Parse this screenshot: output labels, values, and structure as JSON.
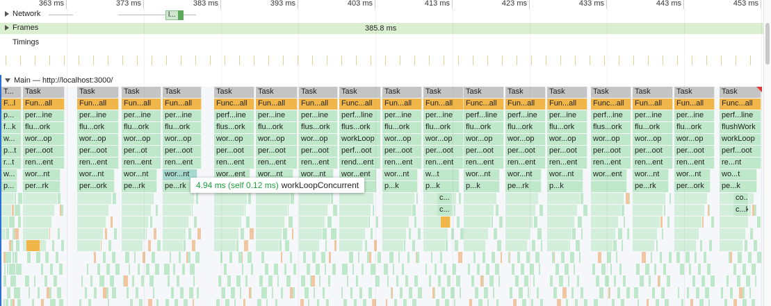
{
  "ruler": {
    "ticks": [
      "363 ms",
      "373 ms",
      "383 ms",
      "393 ms",
      "403 ms",
      "413 ms",
      "423 ms",
      "433 ms",
      "443 ms",
      "453 ms"
    ]
  },
  "tracks": {
    "network": "Network",
    "frames": "Frames",
    "frames_value": "385.8 ms",
    "timings": "Timings",
    "main": "Main — http://localhost:3000/"
  },
  "network_item_label": "l...",
  "tooltip": {
    "duration": "4.94 ms (self 0.12 ms)",
    "name": "workLoopConcurrent"
  },
  "columns": [
    {
      "x": 2,
      "w": 29,
      "rows": [
        "T...",
        "F...l",
        "p...",
        "f...k",
        "w...",
        "p...t",
        "r...t",
        "w...",
        "p..."
      ]
    },
    {
      "x": 33,
      "w": 60,
      "rows": [
        "Task",
        "Fun...all",
        "per...ine",
        "flu...ork",
        "wor...op",
        "per...oot",
        "ren...ent",
        "wor...nt",
        "per...rk"
      ]
    },
    {
      "x": 111,
      "w": 60,
      "rows": [
        "Task",
        "Fun...all",
        "per...ine",
        "flu...ork",
        "wor...op",
        "per...oot",
        "ren...ent",
        "wor...nt",
        "per...ork"
      ]
    },
    {
      "x": 175,
      "w": 57,
      "rows": [
        "Task",
        "Fun...all",
        "per...ine",
        "flu...ork",
        "wor...op",
        "per...ot",
        "ren...ent",
        "wor...nt",
        "pe...rk"
      ]
    },
    {
      "x": 234,
      "w": 56,
      "rows": [
        "Task",
        "Fun...all",
        "per...ine",
        "flu...ork",
        "wor...op",
        "per...oot",
        "ren...ent",
        "wor...nt",
        "pe...rk"
      ]
    },
    {
      "x": 308,
      "w": 58,
      "rows": [
        "Task",
        "Func...all",
        "perf...ine",
        "flus...ork",
        "wor...op",
        "per...oot",
        "ren...ent",
        "wor...ent",
        ""
      ]
    },
    {
      "x": 368,
      "w": 60,
      "rows": [
        "Task",
        "Fun...all",
        "per...ine",
        "flu...ork",
        "wor...op",
        "per...oot",
        "ren...ent",
        "wor...nt",
        ""
      ]
    },
    {
      "x": 430,
      "w": 56,
      "rows": [
        "Task",
        "Fun...all",
        "per...ine",
        "flus...ork",
        "wor...op",
        "per...oot",
        "ren...ent",
        "wor...nt",
        ""
      ]
    },
    {
      "x": 488,
      "w": 60,
      "rows": [
        "Task",
        "Func...all",
        "perf...line",
        "flus...ork",
        "workLoop",
        "perf...oot",
        "rend...ent",
        "wor...ent",
        ""
      ]
    },
    {
      "x": 550,
      "w": 57,
      "rows": [
        "Task",
        "Fun...all",
        "per...ine",
        "flu...ork",
        "wor...op",
        "per...oot",
        "ren...ent",
        "wor...nt",
        "p...k"
      ]
    },
    {
      "x": 609,
      "w": 58,
      "rows": [
        "Task",
        "Fun...all",
        "per...ine",
        "flu...ork",
        "wor...op",
        "per...oot",
        "ren...ent",
        "w...t",
        "p...k"
      ]
    },
    {
      "x": 667,
      "w": 58,
      "rows": [
        "Task",
        "Func...all",
        "perf...line",
        "flu...ork",
        "wor...op",
        "per...oot",
        "ren...ent",
        "wor...nt",
        "p...k"
      ]
    },
    {
      "x": 727,
      "w": 58,
      "rows": [
        "Task",
        "Fun...all",
        "perf...ine",
        "flu...ork",
        "wor...op",
        "per...oot",
        "ren...ent",
        "wor...nt",
        "pe...rk"
      ]
    },
    {
      "x": 787,
      "w": 58,
      "rows": [
        "Task",
        "Fun...all",
        "per...ine",
        "flu...ork",
        "wor...op",
        "per...oot",
        "ren...ent",
        "wor...nt",
        "p...k"
      ]
    },
    {
      "x": 850,
      "w": 58,
      "rows": [
        "Task",
        "Func...all",
        "perf...ine",
        "flus...ork",
        "wor...op",
        "per...oot",
        "ren...ent",
        "wor...ent",
        ""
      ]
    },
    {
      "x": 910,
      "w": 58,
      "rows": [
        "Task",
        "Fun...all",
        "per...ine",
        "flu...ork",
        "wor...op",
        "per...oot",
        "ren...ent",
        "wor...nt",
        "pe...rk"
      ]
    },
    {
      "x": 970,
      "w": 58,
      "rows": [
        "Task",
        "Fun...all",
        "per...ine",
        "flu...ork",
        "wor...op",
        "per...oot",
        "ren...ent",
        "wor...nt",
        "per...ork"
      ]
    },
    {
      "x": 1035,
      "w": 60,
      "rows": [
        "Task",
        "Func...all",
        "perf...line",
        "flushWork",
        "workLoop",
        "perf...oot",
        "re...nt",
        "wo...t",
        "pe...k"
      ]
    }
  ],
  "extra_labels": [
    {
      "col": 10,
      "rows": [
        "c...",
        "c..."
      ]
    },
    {
      "col": 17,
      "rows": [
        "co...k",
        "c...k"
      ]
    }
  ],
  "colors": {
    "task": "#c4c4c4",
    "function_call": "#f0b649",
    "js": "#bfe7c9",
    "frames": "#d9efd0",
    "main_edge": "#2a6ed6"
  }
}
